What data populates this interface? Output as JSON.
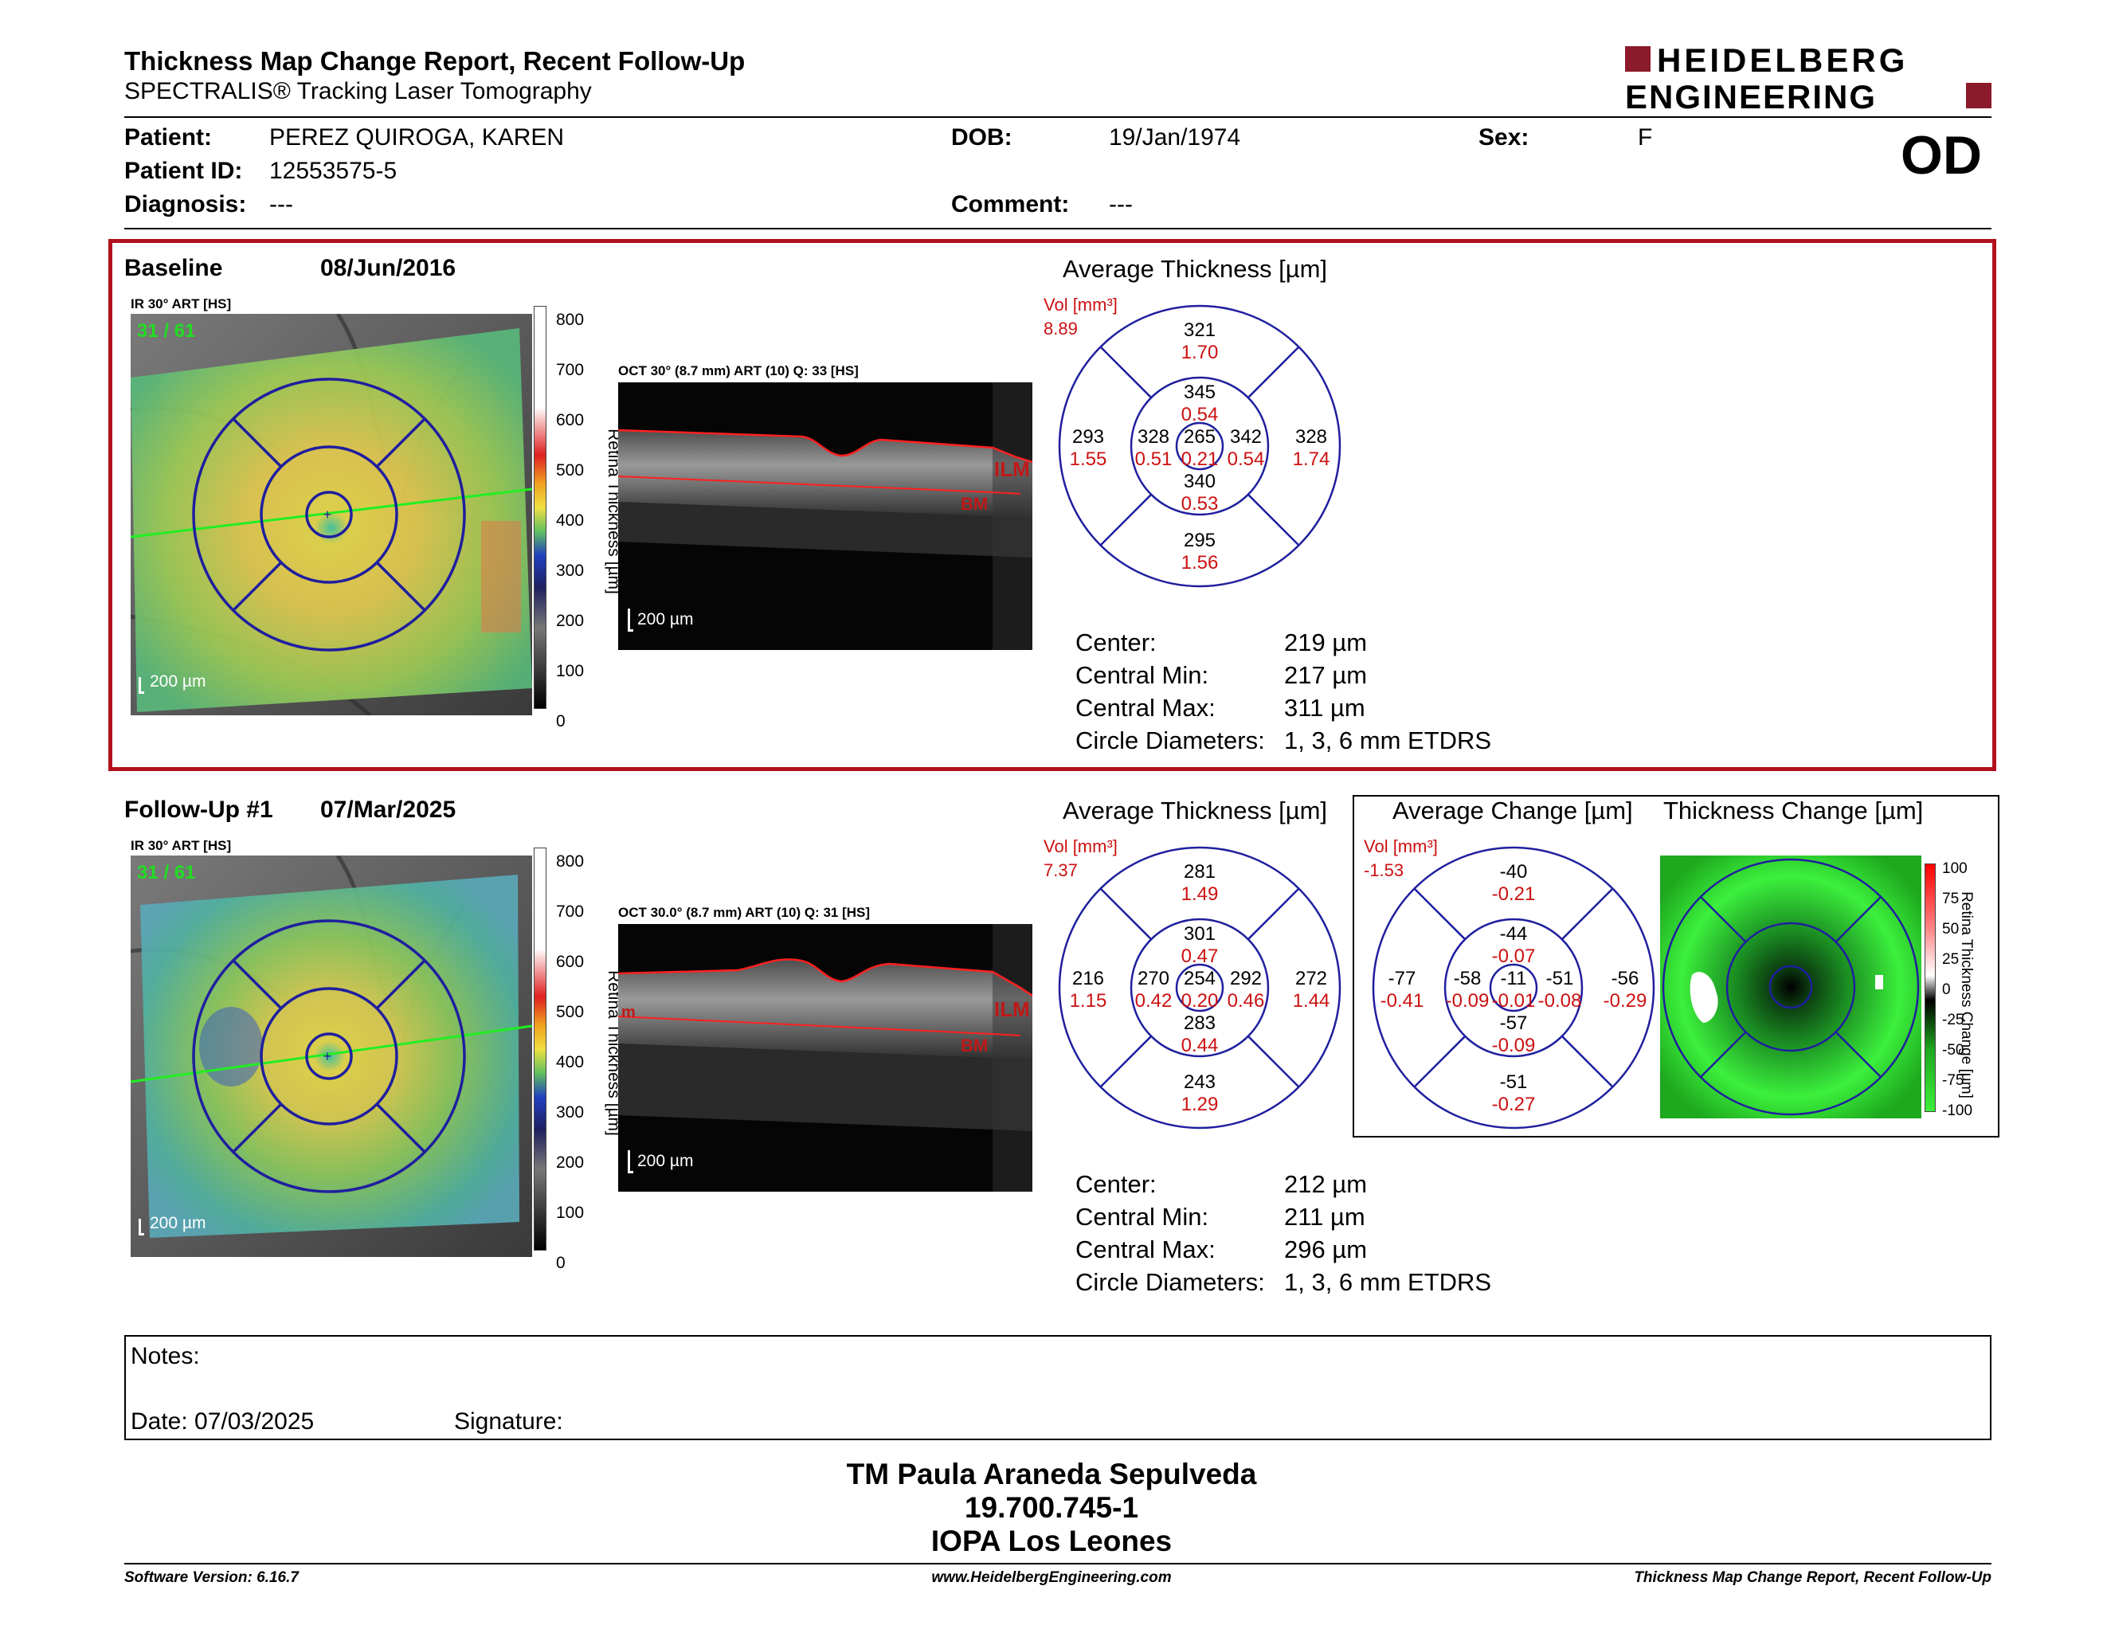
{
  "header": {
    "title": "Thickness Map Change Report, Recent Follow-Up",
    "subtitle": "SPECTRALIS® Tracking Laser Tomography",
    "logo_line1": "HEIDELBERG",
    "logo_line2": "ENGINEERING"
  },
  "patient": {
    "patient_label": "Patient:",
    "patient_value": "PEREZ QUIROGA, KAREN",
    "id_label": "Patient ID:",
    "id_value": "12553575-5",
    "diagnosis_label": "Diagnosis:",
    "diagnosis_value": "---",
    "dob_label": "DOB:",
    "dob_value": "19/Jan/1974",
    "comment_label": "Comment:",
    "comment_value": "---",
    "sex_label": "Sex:",
    "sex_value": "F",
    "eye": "OD"
  },
  "colors": {
    "frame_red": "#b1121d",
    "grid_blue": "#1f1f9e",
    "value_red": "#cc1111",
    "green_text": "#22dd22"
  },
  "baseline": {
    "label": "Baseline",
    "date": "08/Jun/2016",
    "ir_title": "IR 30° ART [HS]",
    "ir_counter": "31 / 61",
    "ir_scale": "200 µm",
    "oct_title": "OCT 30° (8.7 mm) ART (10) Q: 33 [HS]",
    "oct_scale": "200 µm",
    "ilm": "ILM",
    "bm": "BM",
    "colorbar_ticks": [
      "800",
      "700",
      "600",
      "500",
      "400",
      "300",
      "200",
      "100",
      "0"
    ],
    "colorbar_label": "Retina Thickness [µm]",
    "avg_title": "Average Thickness [µm]",
    "vol_label": "Vol [mm³]",
    "vol_value": "8.89",
    "etdrs": {
      "center": {
        "thk": "265",
        "vol": "0.21"
      },
      "inner_sup": {
        "thk": "345",
        "vol": "0.54"
      },
      "inner_nas": {
        "thk": "342",
        "vol": "0.54"
      },
      "inner_inf": {
        "thk": "340",
        "vol": "0.53"
      },
      "inner_tmp": {
        "thk": "328",
        "vol": "0.51"
      },
      "outer_sup": {
        "thk": "321",
        "vol": "1.70"
      },
      "outer_nas": {
        "thk": "328",
        "vol": "1.74"
      },
      "outer_inf": {
        "thk": "295",
        "vol": "1.56"
      },
      "outer_tmp": {
        "thk": "293",
        "vol": "1.55"
      }
    },
    "stats": [
      {
        "label": "Center:",
        "value": "219 µm"
      },
      {
        "label": "Central Min:",
        "value": "217 µm"
      },
      {
        "label": "Central Max:",
        "value": "311 µm"
      },
      {
        "label": "Circle Diameters:",
        "value": "1, 3, 6 mm ETDRS"
      }
    ]
  },
  "followup": {
    "label": "Follow-Up #1",
    "date": "07/Mar/2025",
    "ir_title": "IR 30° ART [HS]",
    "ir_counter": "31 / 61",
    "ir_scale": "200 µm",
    "oct_title": "OCT 30.0° (8.7 mm) ART (10) Q: 31 [HS]",
    "oct_scale": "200 µm",
    "ilm": "ILM",
    "bm": "BM",
    "ilm_left": "m",
    "colorbar_ticks": [
      "800",
      "700",
      "600",
      "500",
      "400",
      "300",
      "200",
      "100",
      "0"
    ],
    "colorbar_label": "Retina Thickness [µm]",
    "avg_title": "Average Thickness [µm]",
    "vol_label": "Vol [mm³]",
    "vol_value": "7.37",
    "etdrs": {
      "center": {
        "thk": "254",
        "vol": "0.20"
      },
      "inner_sup": {
        "thk": "301",
        "vol": "0.47"
      },
      "inner_nas": {
        "thk": "292",
        "vol": "0.46"
      },
      "inner_inf": {
        "thk": "283",
        "vol": "0.44"
      },
      "inner_tmp": {
        "thk": "270",
        "vol": "0.42"
      },
      "outer_sup": {
        "thk": "281",
        "vol": "1.49"
      },
      "outer_nas": {
        "thk": "272",
        "vol": "1.44"
      },
      "outer_inf": {
        "thk": "243",
        "vol": "1.29"
      },
      "outer_tmp": {
        "thk": "216",
        "vol": "1.15"
      }
    },
    "stats": [
      {
        "label": "Center:",
        "value": "212 µm"
      },
      {
        "label": "Central Min:",
        "value": "211 µm"
      },
      {
        "label": "Central Max:",
        "value": "296 µm"
      },
      {
        "label": "Circle Diameters:",
        "value": "1, 3, 6 mm ETDRS"
      }
    ]
  },
  "change": {
    "avg_title": "Average Change [µm]",
    "map_title": "Thickness Change [µm]",
    "vol_label": "Vol [mm³]",
    "vol_value": "-1.53",
    "etdrs": {
      "center": {
        "thk": "-11",
        "vol": "-0.01"
      },
      "inner_sup": {
        "thk": "-44",
        "vol": "-0.07"
      },
      "inner_nas": {
        "thk": "-51",
        "vol": "-0.08"
      },
      "inner_inf": {
        "thk": "-57",
        "vol": "-0.09"
      },
      "inner_tmp": {
        "thk": "-58",
        "vol": "-0.09"
      },
      "outer_sup": {
        "thk": "-40",
        "vol": "-0.21"
      },
      "outer_nas": {
        "thk": "-56",
        "vol": "-0.29"
      },
      "outer_inf": {
        "thk": "-51",
        "vol": "-0.27"
      },
      "outer_tmp": {
        "thk": "-77",
        "vol": "-0.41"
      }
    },
    "colorbar_ticks": [
      "100",
      "75",
      "50",
      "25",
      "0",
      "-25",
      "-50",
      "-75",
      "-100"
    ],
    "colorbar_label": "Retina Thickness Change [µm]"
  },
  "notes": {
    "label": "Notes:",
    "date_label": "Date: 07/03/2025",
    "signature_label": "Signature:"
  },
  "signature_block": {
    "name": "TM Paula Araneda Sepulveda",
    "id": "19.700.745-1",
    "institution": "IOPA Los Leones"
  },
  "footer": {
    "left": "Software Version: 6.16.7",
    "center": "www.HeidelbergEngineering.com",
    "right": "Thickness Map Change Report, Recent Follow-Up"
  }
}
